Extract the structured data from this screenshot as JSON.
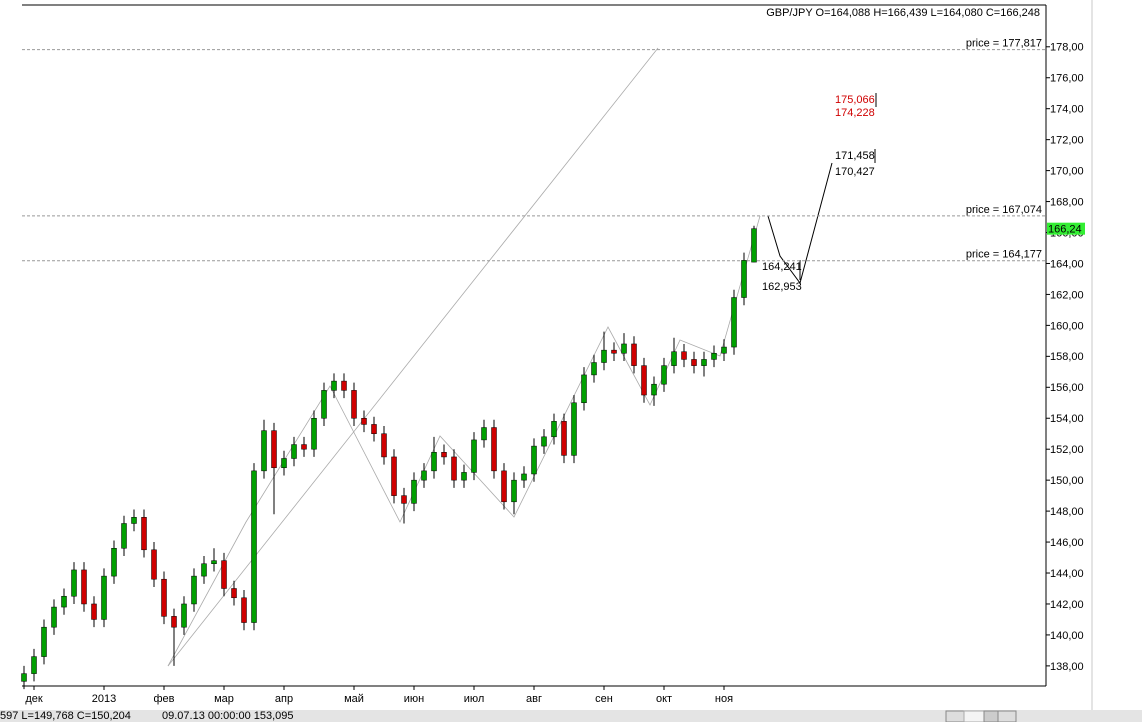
{
  "chart_data": {
    "type": "candlestick",
    "header": "GBP/JPY O=164,088 H=166,439 L=164,080 C=166,248",
    "status_left": "597 L=149,768 C=150,204",
    "status_right": "09.07.13 00:00:00 153,095",
    "last_price_label": "166,24",
    "up_color": "#00a000",
    "down_color": "#d00000",
    "categories": [
      null,
      "дек",
      null,
      null,
      null,
      null,
      null,
      null,
      "2013",
      null,
      null,
      null,
      null,
      null,
      "фев",
      null,
      null,
      null,
      null,
      null,
      "мар",
      null,
      null,
      null,
      null,
      null,
      "апр",
      null,
      null,
      null,
      null,
      null,
      null,
      "май",
      null,
      null,
      null,
      null,
      null,
      "июн",
      null,
      null,
      null,
      null,
      null,
      "июл",
      null,
      null,
      null,
      null,
      null,
      "авг",
      null,
      null,
      null,
      null,
      null,
      null,
      "сен",
      null,
      null,
      null,
      null,
      null,
      "окт",
      null,
      null,
      null,
      null,
      null,
      "ноя",
      null,
      null,
      null
    ],
    "open": [
      137.0,
      137.5,
      138.6,
      140.5,
      141.8,
      142.5,
      144.2,
      142.0,
      141.0,
      143.8,
      145.6,
      147.2,
      147.6,
      145.5,
      143.6,
      141.2,
      140.5,
      142.0,
      143.8,
      144.6,
      144.8,
      143.0,
      142.4,
      140.8,
      150.6,
      153.2,
      150.8,
      151.4,
      152.3,
      152.0,
      154.0,
      155.8,
      156.4,
      155.8,
      154.0,
      153.6,
      153.0,
      151.5,
      149.0,
      148.5,
      150.0,
      150.6,
      151.8,
      151.5,
      150.0,
      150.5,
      152.6,
      153.4,
      150.6,
      148.6,
      150.0,
      150.4,
      152.2,
      152.8,
      153.8,
      151.6,
      155.0,
      156.8,
      157.6,
      158.4,
      158.2,
      158.8,
      157.4,
      155.5,
      156.2,
      157.4,
      158.3,
      157.8,
      157.4,
      157.8,
      158.2,
      158.6,
      161.8,
      164.088
    ],
    "high": [
      138.0,
      139.1,
      141.0,
      142.3,
      143.0,
      144.7,
      144.7,
      142.5,
      144.3,
      146.1,
      147.7,
      148.1,
      148.1,
      146.0,
      144.1,
      141.7,
      142.5,
      144.3,
      145.1,
      145.6,
      145.3,
      143.5,
      142.9,
      151.1,
      153.9,
      153.7,
      151.9,
      152.8,
      152.8,
      154.5,
      156.3,
      156.9,
      156.9,
      156.3,
      154.5,
      154.1,
      153.5,
      152.0,
      149.5,
      150.5,
      151.1,
      152.8,
      152.3,
      152.0,
      151.0,
      153.1,
      153.9,
      153.9,
      151.1,
      150.5,
      150.9,
      152.7,
      153.3,
      154.3,
      154.3,
      155.5,
      157.3,
      158.1,
      159.6,
      158.9,
      159.5,
      159.3,
      157.9,
      156.7,
      157.9,
      159.2,
      158.8,
      158.3,
      158.3,
      158.7,
      159.1,
      162.3,
      164.7,
      166.439
    ],
    "low": [
      136.5,
      137.0,
      138.1,
      140.0,
      141.3,
      142.0,
      141.5,
      140.5,
      140.5,
      143.3,
      145.1,
      146.7,
      145.0,
      143.1,
      140.7,
      138.0,
      140.0,
      141.5,
      143.3,
      144.1,
      142.5,
      141.9,
      140.3,
      140.3,
      150.1,
      147.8,
      150.3,
      150.9,
      151.5,
      151.5,
      153.5,
      155.3,
      155.3,
      153.5,
      153.1,
      152.5,
      151.0,
      148.5,
      147.2,
      148.0,
      149.5,
      150.1,
      151.0,
      149.5,
      149.5,
      150.0,
      152.1,
      150.1,
      148.1,
      147.8,
      149.5,
      149.9,
      151.7,
      152.3,
      151.1,
      151.1,
      154.5,
      156.3,
      157.1,
      157.7,
      157.7,
      156.9,
      155.0,
      154.8,
      155.7,
      156.9,
      157.3,
      156.9,
      156.7,
      157.3,
      157.7,
      158.1,
      161.3,
      164.08
    ],
    "close": [
      137.5,
      138.6,
      140.5,
      141.8,
      142.5,
      144.2,
      142.0,
      141.0,
      143.8,
      145.6,
      147.2,
      147.6,
      145.5,
      143.6,
      141.2,
      140.5,
      142.0,
      143.8,
      144.6,
      144.8,
      143.0,
      142.4,
      140.8,
      150.6,
      153.2,
      150.8,
      151.4,
      152.3,
      152.0,
      154.0,
      155.8,
      156.4,
      155.8,
      154.0,
      153.6,
      153.0,
      151.5,
      149.0,
      148.5,
      150.0,
      150.6,
      151.8,
      151.5,
      150.0,
      150.5,
      152.6,
      153.4,
      150.6,
      148.6,
      150.0,
      150.4,
      152.2,
      152.8,
      153.8,
      151.6,
      155.0,
      156.8,
      157.6,
      158.4,
      158.2,
      158.8,
      157.4,
      155.5,
      156.2,
      157.4,
      158.3,
      157.8,
      157.4,
      157.8,
      158.2,
      158.6,
      161.8,
      164.2,
      166.248
    ],
    "ylim": [
      136.7,
      180.7
    ],
    "yticks": [
      {
        "value": 138,
        "label": "138,00"
      },
      {
        "value": 140,
        "label": "140,00"
      },
      {
        "value": 142,
        "label": "142,00"
      },
      {
        "value": 144,
        "label": "144,00"
      },
      {
        "value": 146,
        "label": "146,00"
      },
      {
        "value": 148,
        "label": "148,00"
      },
      {
        "value": 150,
        "label": "150,00"
      },
      {
        "value": 152,
        "label": "152,00"
      },
      {
        "value": 154,
        "label": "154,00"
      },
      {
        "value": 156,
        "label": "156,00"
      },
      {
        "value": 158,
        "label": "158,00"
      },
      {
        "value": 160,
        "label": "160,00"
      },
      {
        "value": 162,
        "label": "162,00"
      },
      {
        "value": 164,
        "label": "164,00"
      },
      {
        "value": 166,
        "label": "166,00"
      },
      {
        "value": 168,
        "label": "168,00"
      },
      {
        "value": 170,
        "label": "170,00"
      },
      {
        "value": 172,
        "label": "172,00"
      },
      {
        "value": 174,
        "label": "174,00"
      },
      {
        "value": 176,
        "label": "176,00"
      },
      {
        "value": 178,
        "label": "178,00"
      }
    ],
    "price_lines": [
      {
        "value": 177.817,
        "label": "price = 177,817"
      },
      {
        "value": 167.074,
        "label": "price = 167,074"
      },
      {
        "value": 164.177,
        "label": "price = 164,177"
      }
    ],
    "projection_labels": [
      {
        "text": "175,066",
        "color": "#d00000"
      },
      {
        "text": "174,228",
        "color": "#d00000"
      },
      {
        "text": "171,458",
        "color": "#000000"
      },
      {
        "text": "170,427",
        "color": "#000000"
      },
      {
        "text": "164,241",
        "color": "#000000"
      },
      {
        "text": "162,953",
        "color": "#000000"
      }
    ]
  }
}
